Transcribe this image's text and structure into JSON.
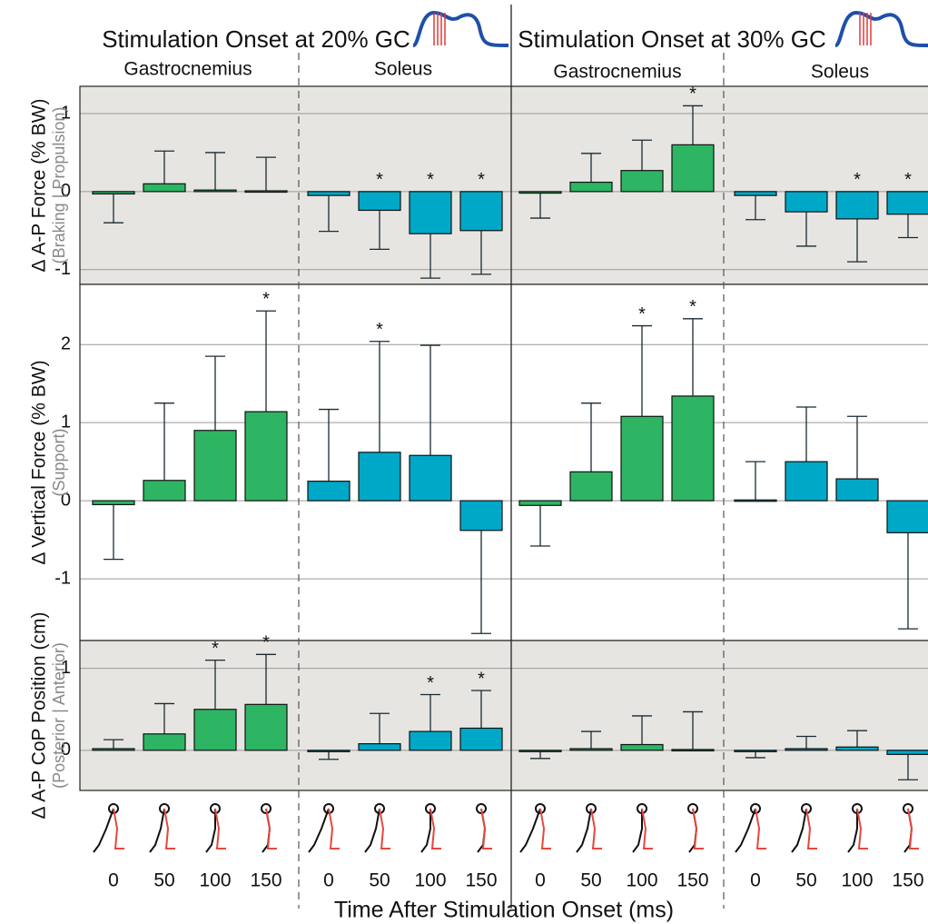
{
  "chart_data": {
    "type": "bar",
    "xlabel": "Time After Stimulation Onset (ms)",
    "categories": [
      0,
      50,
      100,
      150
    ],
    "significance_marker": "*",
    "panels": [
      {
        "title": "Stimulation Onset at 20% GC"
      },
      {
        "title": "Stimulation Onset at 30% GC"
      }
    ],
    "muscles": [
      {
        "name": "Gastrocnemius",
        "color": "#2db563"
      },
      {
        "name": "Soleus",
        "color": "#00a8c8"
      }
    ],
    "rows": [
      {
        "ylabel": "Δ A-P Force (% BW)",
        "ylabel_note": "(Braking  |  Propulsion)",
        "ylim": [
          -1.19,
          1.35
        ],
        "yticks": [
          -1,
          0,
          1
        ],
        "background": "#e6e5e1",
        "grid": true,
        "series": [
          {
            "values": [
              -0.03,
              0.1,
              0.02,
              0.01
            ],
            "errors": [
              0.37,
              0.42,
              0.48,
              0.43
            ],
            "significant": [
              false,
              false,
              false,
              false
            ]
          },
          {
            "values": [
              -0.05,
              -0.24,
              -0.54,
              -0.5
            ],
            "errors": [
              0.46,
              0.5,
              0.57,
              0.56
            ],
            "significant": [
              false,
              true,
              true,
              true
            ]
          },
          {
            "values": [
              -0.02,
              0.12,
              0.27,
              0.6
            ],
            "errors": [
              0.32,
              0.37,
              0.39,
              0.5
            ],
            "significant": [
              false,
              false,
              false,
              true
            ]
          },
          {
            "values": [
              -0.05,
              -0.26,
              -0.35,
              -0.29
            ],
            "errors": [
              0.31,
              0.44,
              0.55,
              0.3
            ],
            "significant": [
              false,
              false,
              true,
              true
            ]
          }
        ]
      },
      {
        "ylabel": "Δ Vertical Force (% BW)",
        "ylabel_note": "(Support)",
        "ylim": [
          -1.79,
          2.77
        ],
        "yticks": [
          -1,
          0,
          1,
          2
        ],
        "background": "#ffffff",
        "grid": true,
        "series": [
          {
            "values": [
              -0.05,
              0.26,
              0.9,
              1.14
            ],
            "errors": [
              0.7,
              0.99,
              0.95,
              1.29
            ],
            "significant": [
              false,
              false,
              false,
              true
            ]
          },
          {
            "values": [
              0.25,
              0.62,
              0.58,
              -0.38
            ],
            "errors": [
              0.92,
              1.42,
              1.41,
              1.32
            ],
            "significant": [
              false,
              true,
              false,
              false
            ]
          },
          {
            "values": [
              -0.06,
              0.37,
              1.08,
              1.34
            ],
            "errors": [
              0.52,
              0.88,
              1.16,
              0.99
            ],
            "significant": [
              false,
              false,
              true,
              true
            ]
          },
          {
            "values": [
              0.01,
              0.5,
              0.28,
              -0.41
            ],
            "errors": [
              0.49,
              0.7,
              0.8,
              1.23
            ],
            "significant": [
              false,
              false,
              false,
              false
            ]
          }
        ]
      },
      {
        "ylabel": "Δ A-P CoP Position (cm)",
        "ylabel_note": "(Posterior  |  Anterior)",
        "ylim": [
          -0.49,
          1.34
        ],
        "yticks": [
          0,
          1
        ],
        "background": "#e6e5e1",
        "grid": true,
        "series": [
          {
            "values": [
              0.02,
              0.2,
              0.5,
              0.56
            ],
            "errors": [
              0.11,
              0.37,
              0.6,
              0.61
            ],
            "significant": [
              false,
              false,
              true,
              true
            ]
          },
          {
            "values": [
              -0.01,
              0.08,
              0.23,
              0.27
            ],
            "errors": [
              0.1,
              0.37,
              0.45,
              0.46
            ],
            "significant": [
              false,
              false,
              true,
              true
            ]
          },
          {
            "values": [
              -0.01,
              0.02,
              0.07,
              0.01
            ],
            "errors": [
              0.09,
              0.21,
              0.35,
              0.46
            ],
            "significant": [
              false,
              false,
              false,
              false
            ]
          },
          {
            "values": [
              -0.01,
              0.02,
              0.04,
              -0.05
            ],
            "errors": [
              0.08,
              0.15,
              0.2,
              0.31
            ],
            "significant": [
              false,
              false,
              false,
              false
            ]
          }
        ]
      }
    ]
  }
}
